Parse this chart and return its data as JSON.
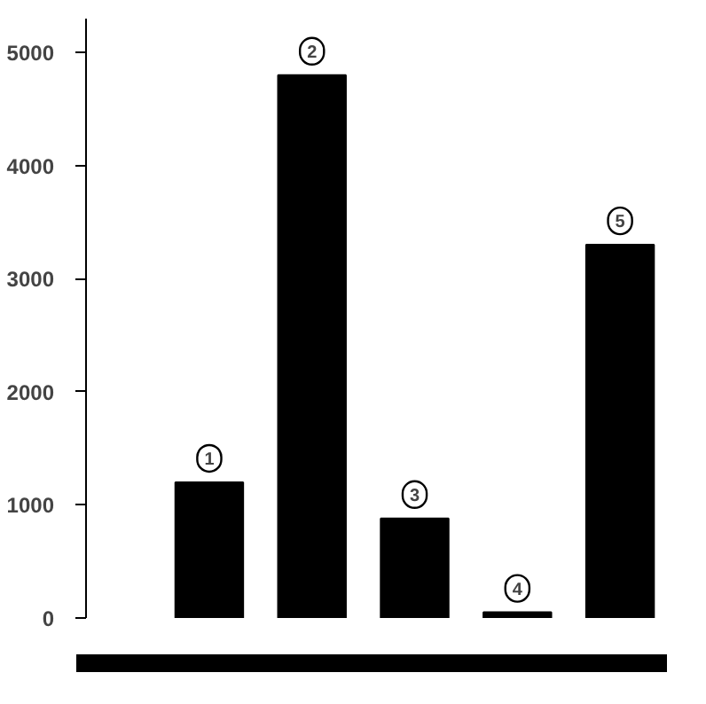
{
  "chart_data": {
    "type": "bar",
    "categories": [
      null,
      null,
      null,
      null,
      null
    ],
    "values": [
      1200,
      4800,
      880,
      50,
      3300
    ],
    "color": "#000000",
    "ylim": [
      0,
      5300
    ],
    "yticks": [
      0,
      1000,
      2000,
      3000,
      4000,
      5000
    ],
    "grid": false,
    "annotations": [
      "1",
      "2",
      "3",
      "4",
      "5"
    ]
  }
}
